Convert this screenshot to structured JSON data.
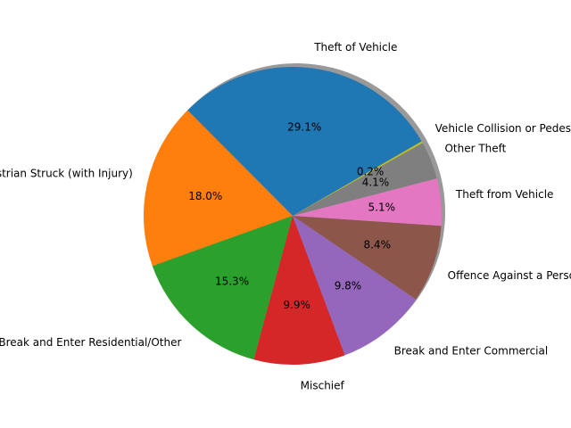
{
  "chart_data": {
    "type": "pie",
    "title": "",
    "start_angle_deg": 30,
    "direction": "counterclockwise",
    "shadow": true,
    "slices": [
      {
        "label": "Theft of Vehicle",
        "value": 29.1,
        "pct_label": "29.1%",
        "color": "#1f77b4"
      },
      {
        "label": "Pedestrian Struck (with Injury)",
        "value": 18.0,
        "pct_label": "18.0%",
        "color": "#ff7f0e"
      },
      {
        "label": "Break and Enter Residential/Other",
        "value": 15.3,
        "pct_label": "15.3%",
        "color": "#2ca02c"
      },
      {
        "label": "Mischief",
        "value": 9.9,
        "pct_label": "9.9%",
        "color": "#d62728"
      },
      {
        "label": "Break and Enter Commercial",
        "value": 9.8,
        "pct_label": "9.8%",
        "color": "#9467bd"
      },
      {
        "label": "Offence Against a Person",
        "value": 8.4,
        "pct_label": "8.4%",
        "color": "#8c564b"
      },
      {
        "label": "Theft from Vehicle",
        "value": 5.1,
        "pct_label": "5.1%",
        "color": "#e377c2"
      },
      {
        "label": "Other Theft",
        "value": 4.1,
        "pct_label": "4.1%",
        "color": "#7f7f7f"
      },
      {
        "label": "Vehicle Collision or Pedestrian Struck (with Fatality)",
        "value": 0.2,
        "pct_label": "0.2%",
        "color": "#bcbd22"
      }
    ]
  }
}
